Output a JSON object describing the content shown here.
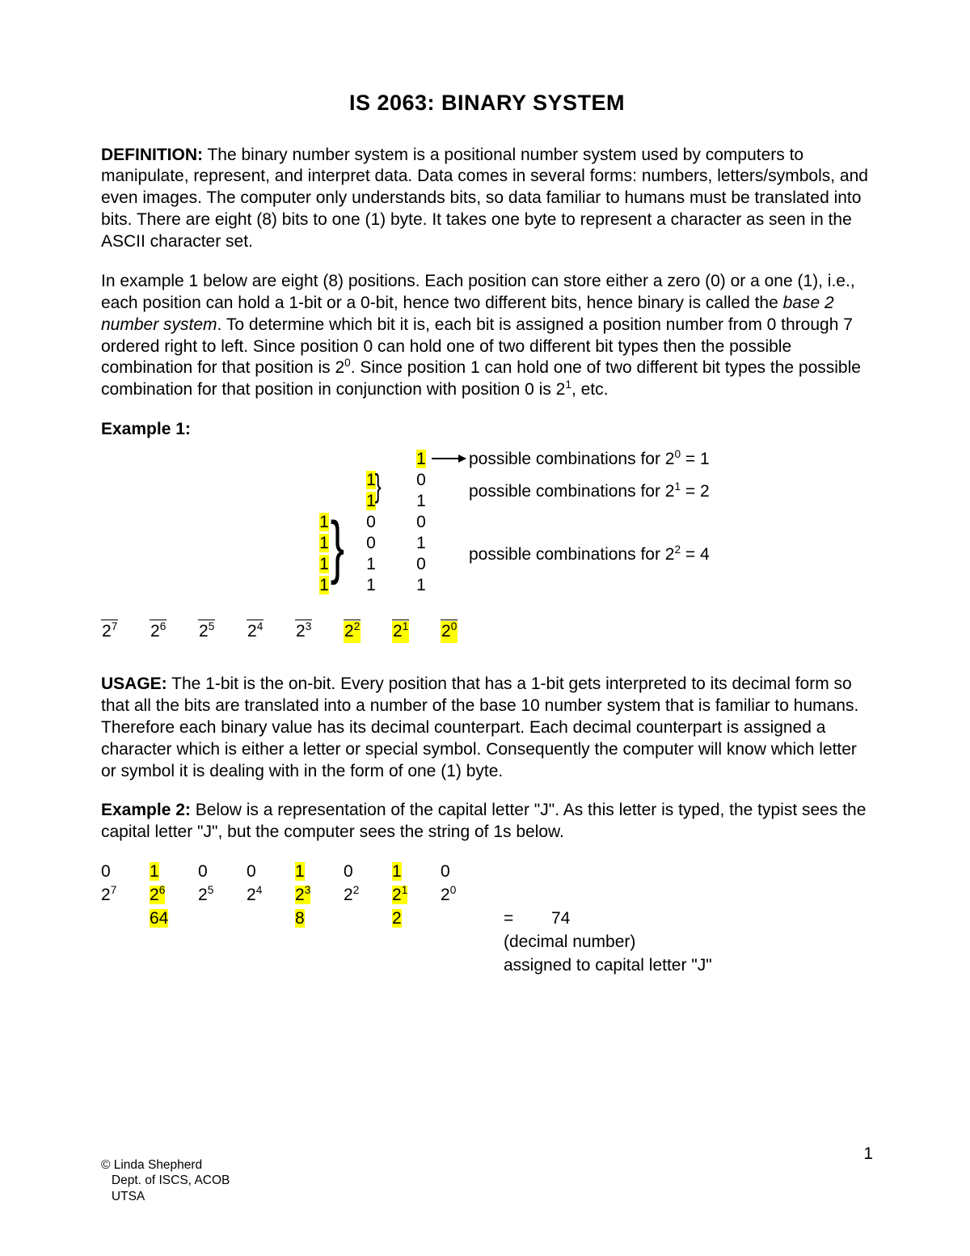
{
  "title": "IS 2063:  BINARY SYSTEM",
  "definition_label": "DEFINITION:",
  "definition_text": "  The binary number system is a positional number system used by computers to manipulate, represent, and interpret data.  Data comes in several forms:  numbers, letters/symbols, and even images.  The computer only understands bits, so data familiar to humans must be translated into bits.  There are eight (8) bits to one (1) byte.  It takes one byte to represent a character as seen in the ASCII character set.",
  "para2_a": "In example 1 below are eight (8) positions.  Each position can store either a zero (0) or a one (1), i.e., each position can hold a 1-bit or a 0-bit, hence two different bits, hence binary is called the ",
  "para2_ital": "base 2 number system",
  "para2_b": ".  To determine which bit it is, each bit is assigned a position number from 0 through 7 ordered right to left.  Since position 0 can hold one of two different bit types then the possible combination for that position is 2",
  "para2_sup1": "0",
  "para2_c": ".  Since position 1 can hold one of two different bit types the possible combination for that position in conjunction with position 0 is 2",
  "para2_sup2": "1",
  "para2_d": ", etc.",
  "example1_label": "Example 1:",
  "ex1": {
    "ann1_a": "possible combinations for 2",
    "ann1_sup": "0",
    "ann1_b": " = 1",
    "ann2_a": "possible combinations for 2",
    "ann2_sup": "1",
    "ann2_b": " = 2",
    "ann3_a": "possible combinations for 2",
    "ann3_sup": "2",
    "ann3_b": " = 4",
    "powers": [
      "7",
      "6",
      "5",
      "4",
      "3",
      "2",
      "1",
      "0"
    ],
    "col2": [
      "1",
      "1",
      "1",
      "1"
    ],
    "col1": [
      "1",
      "1",
      "0",
      "0",
      "1",
      "1"
    ],
    "col0": [
      "1",
      "0",
      "1",
      "0",
      "1",
      "0",
      "1"
    ]
  },
  "usage_label": "USAGE:",
  "usage_text": "  The 1-bit is the on-bit.  Every position that has a 1-bit gets interpreted to its decimal form so that all the bits are translated into a number of the base 10 number system that is familiar to humans.  Therefore each binary value has its decimal counterpart.  Each decimal counterpart is assigned a character which is either a letter or special symbol.  Consequently the computer will know which letter or symbol it is dealing with in the form of one (1) byte.",
  "example2_label": "Example 2:",
  "example2_text": "  Below is a representation of the capital letter \"J\".  As this letter is typed, the typist sees the capital letter \"J\", but the computer sees the string of 1s below.",
  "ex2": {
    "bits": [
      "0",
      "1",
      "0",
      "0",
      "1",
      "0",
      "1",
      "0"
    ],
    "powers": [
      "7",
      "6",
      "5",
      "4",
      "3",
      "2",
      "1",
      "0"
    ],
    "values": [
      "",
      "64",
      "",
      "",
      "8",
      "",
      "2",
      ""
    ],
    "highlight_cols": [
      1,
      4,
      6
    ],
    "equals_a": "=        74",
    "equals_b": "(decimal number)",
    "equals_c": "assigned to capital letter \"J\""
  },
  "footer1": "© Linda Shepherd",
  "footer2": "   Dept. of ISCS, ACOB",
  "footer3": "   UTSA",
  "page_number": "1"
}
